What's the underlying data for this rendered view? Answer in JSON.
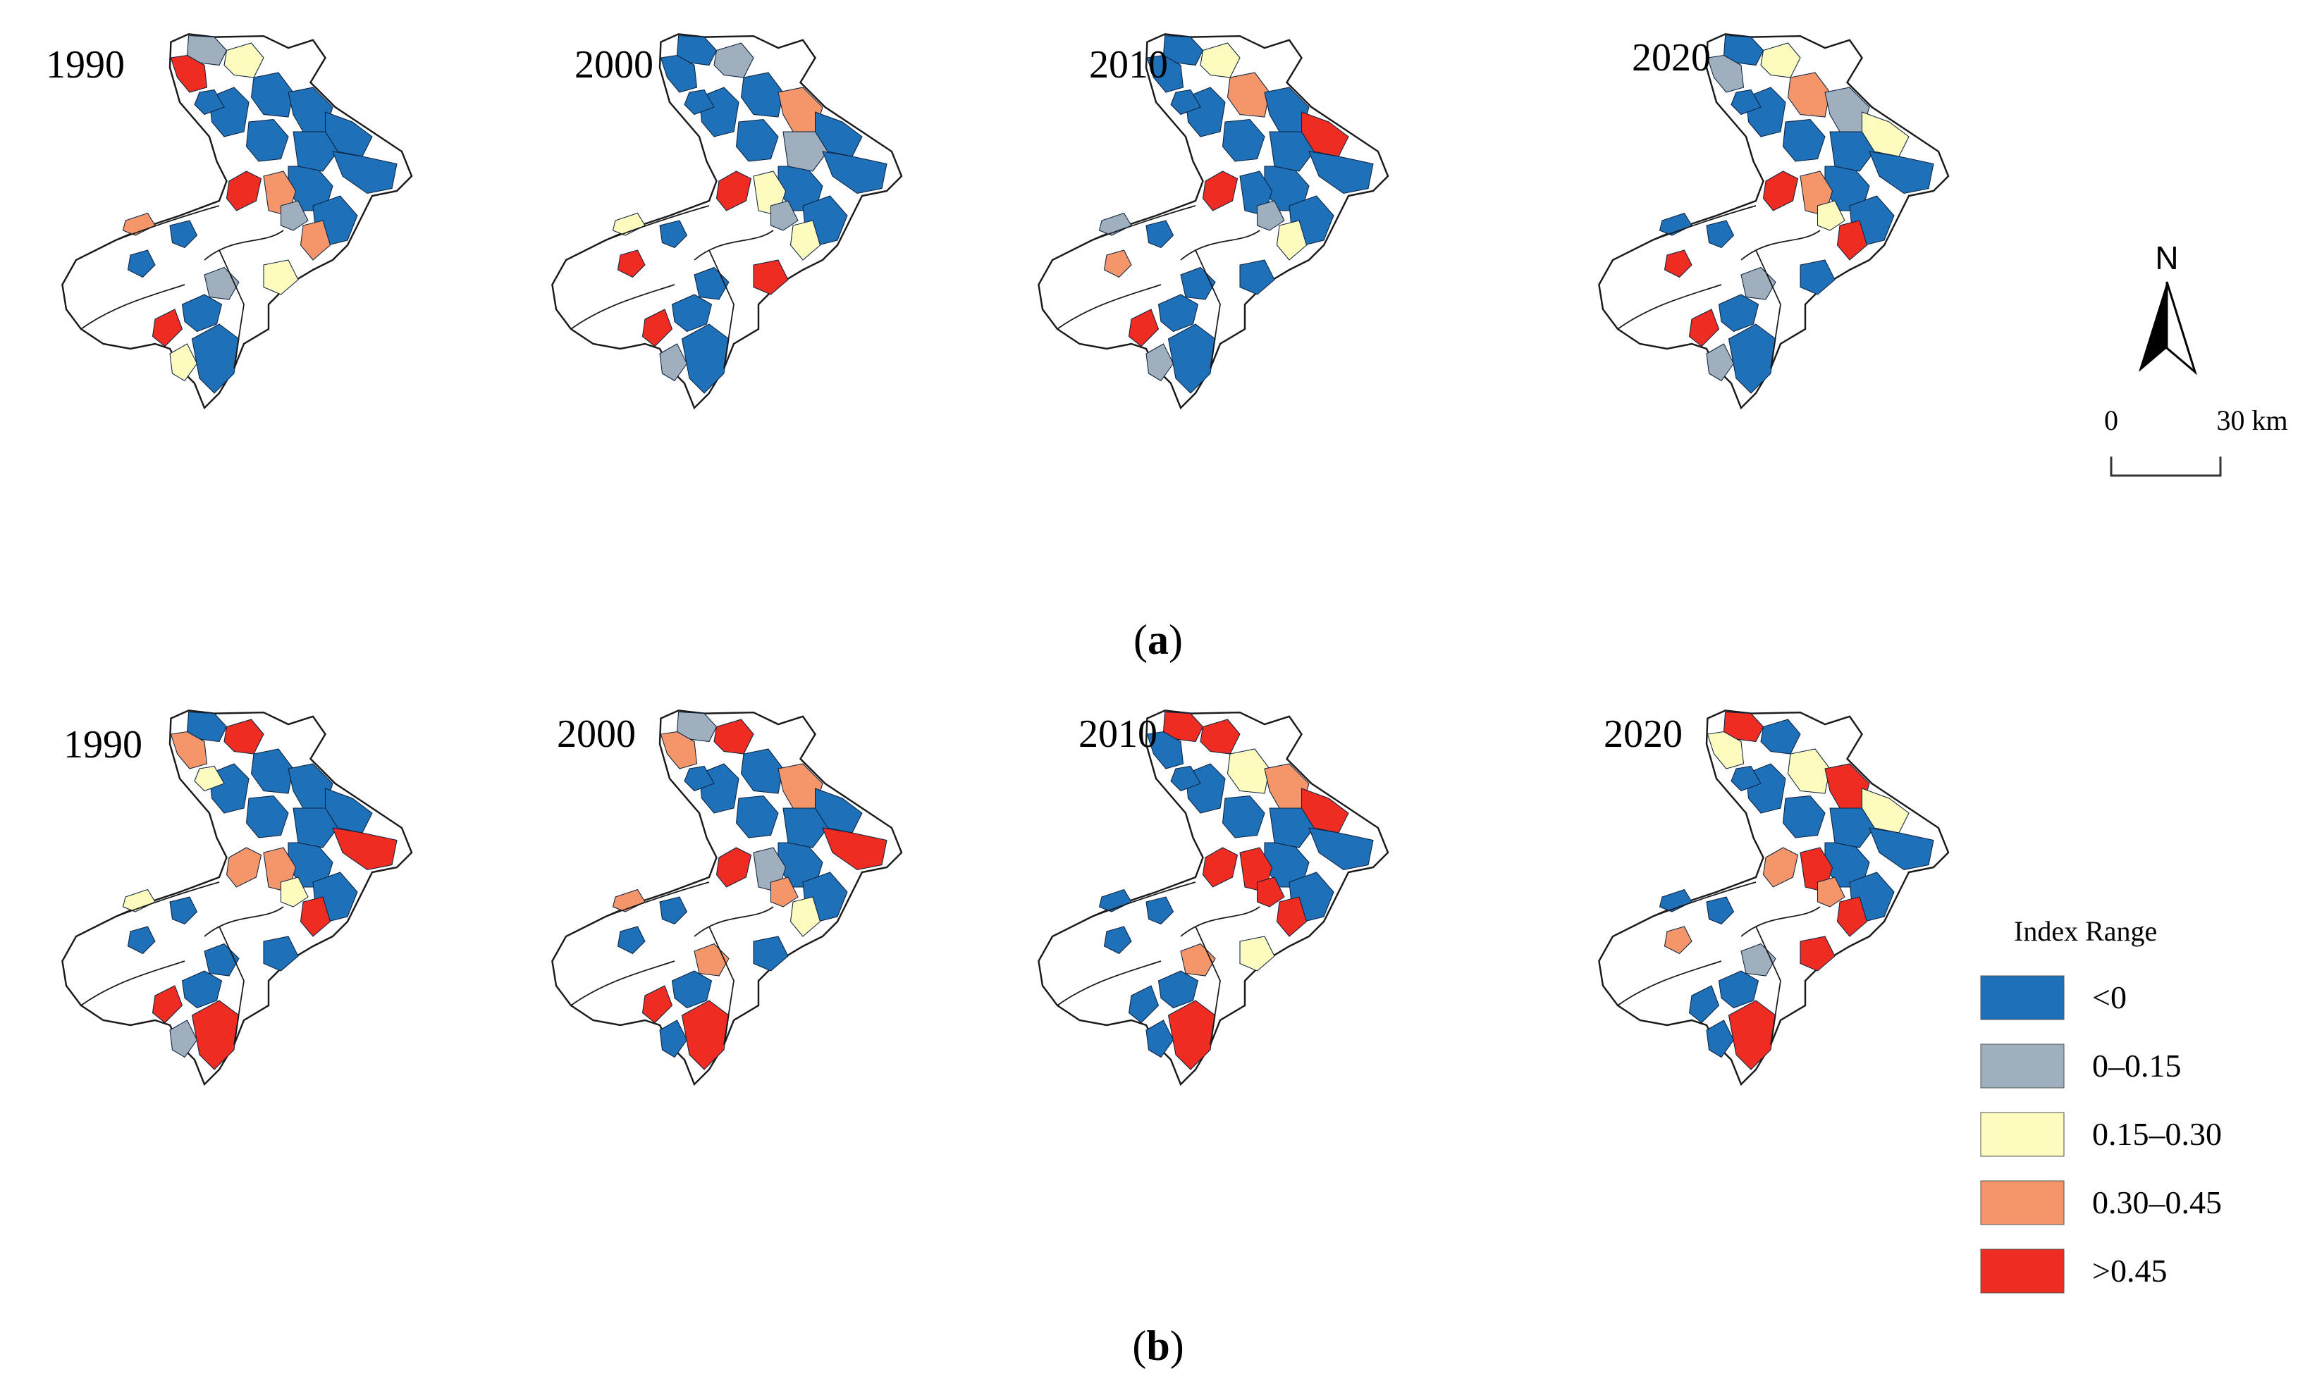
{
  "colors": {
    "lt0": "#1e70b8",
    "c0_015": "#a0afbd",
    "c015_030": "#fdfcbe",
    "c030_045": "#f5966a",
    "gt045": "#ef2c22",
    "white": "#ffffff",
    "outline": "#1a1a1a"
  },
  "panels": [
    {
      "caption_letter": "a",
      "maps": [
        {
          "year": "1990",
          "regions": {
            "n1": "c0_015",
            "n2": "gt045",
            "n3": "c015_030",
            "n4": "lt0",
            "n5": "lt0",
            "n6": "lt0",
            "c1": "gt045",
            "c2": "c030_045",
            "c3": "c0_015",
            "w1": "c030_045",
            "w2": "lt0",
            "s1": "c0_015",
            "s2": "c015_030",
            "se1": "c030_045",
            "sw1": "gt045",
            "sw2": "c015_030",
            "sw3": "lt0",
            "e1": "lt0",
            "e2": "lt0",
            "e3": "lt0"
          }
        },
        {
          "year": "2000",
          "regions": {
            "n1": "lt0",
            "n2": "lt0",
            "n3": "c0_015",
            "n4": "lt0",
            "n5": "lt0",
            "n6": "c030_045",
            "c1": "gt045",
            "c2": "c015_030",
            "c3": "c0_015",
            "w1": "c015_030",
            "w2": "gt045",
            "s1": "lt0",
            "s2": "gt045",
            "se1": "c015_030",
            "sw1": "gt045",
            "sw2": "c0_015",
            "sw3": "lt0",
            "e1": "lt0",
            "e2": "c0_015",
            "e3": "lt0"
          }
        },
        {
          "year": "2010",
          "regions": {
            "n1": "lt0",
            "n2": "lt0",
            "n3": "c015_030",
            "n4": "lt0",
            "n5": "c030_045",
            "n6": "lt0",
            "c1": "gt045",
            "c2": "lt0",
            "c3": "c0_015",
            "w1": "c0_015",
            "w2": "c030_045",
            "s1": "lt0",
            "s2": "lt0",
            "se1": "c015_030",
            "sw1": "gt045",
            "sw2": "c0_015",
            "sw3": "lt0",
            "e1": "gt045",
            "e2": "lt0",
            "e3": "lt0"
          }
        },
        {
          "year": "2020",
          "regions": {
            "n1": "lt0",
            "n2": "c0_015",
            "n3": "c015_030",
            "n4": "lt0",
            "n5": "c030_045",
            "n6": "c0_015",
            "c1": "gt045",
            "c2": "c030_045",
            "c3": "c015_030",
            "w1": "lt0",
            "w2": "gt045",
            "s1": "c0_015",
            "s2": "lt0",
            "se1": "gt045",
            "sw1": "gt045",
            "sw2": "c0_015",
            "sw3": "lt0",
            "e1": "c015_030",
            "e2": "lt0",
            "e3": "lt0"
          }
        }
      ]
    },
    {
      "caption_letter": "b",
      "maps": [
        {
          "year": "1990",
          "regions": {
            "n1": "lt0",
            "n2": "c030_045",
            "n3": "gt045",
            "n4": "c015_030",
            "n5": "lt0",
            "n6": "lt0",
            "c1": "c030_045",
            "c2": "c030_045",
            "c3": "c015_030",
            "w1": "c015_030",
            "w2": "lt0",
            "s1": "lt0",
            "s2": "lt0",
            "se1": "gt045",
            "sw1": "gt045",
            "sw2": "c0_015",
            "sw3": "gt045",
            "e1": "lt0",
            "e2": "lt0",
            "e3": "gt045"
          }
        },
        {
          "year": "2000",
          "regions": {
            "n1": "c0_015",
            "n2": "c030_045",
            "n3": "gt045",
            "n4": "lt0",
            "n5": "lt0",
            "n6": "c030_045",
            "c1": "gt045",
            "c2": "c0_015",
            "c3": "c030_045",
            "w1": "c030_045",
            "w2": "lt0",
            "s1": "c030_045",
            "s2": "lt0",
            "se1": "c015_030",
            "sw1": "gt045",
            "sw2": "lt0",
            "sw3": "gt045",
            "e1": "lt0",
            "e2": "lt0",
            "e3": "gt045"
          }
        },
        {
          "year": "2010",
          "regions": {
            "n1": "gt045",
            "n2": "lt0",
            "n3": "gt045",
            "n4": "lt0",
            "n5": "c015_030",
            "n6": "c030_045",
            "c1": "gt045",
            "c2": "gt045",
            "c3": "gt045",
            "w1": "lt0",
            "w2": "lt0",
            "s1": "c030_045",
            "s2": "c015_030",
            "se1": "gt045",
            "sw1": "lt0",
            "sw2": "lt0",
            "sw3": "gt045",
            "e1": "gt045",
            "e2": "lt0",
            "e3": "lt0"
          }
        },
        {
          "year": "2020",
          "regions": {
            "n1": "gt045",
            "n2": "c015_030",
            "n3": "lt0",
            "n4": "lt0",
            "n5": "c015_030",
            "n6": "gt045",
            "c1": "c030_045",
            "c2": "gt045",
            "c3": "c030_045",
            "w1": "lt0",
            "w2": "c030_045",
            "s1": "c0_015",
            "s2": "gt045",
            "se1": "gt045",
            "sw1": "lt0",
            "sw2": "lt0",
            "sw3": "gt045",
            "e1": "c015_030",
            "e2": "lt0",
            "e3": "lt0"
          }
        }
      ]
    }
  ],
  "legend": {
    "title": "Index Range",
    "items": [
      {
        "label": "<0",
        "color_key": "lt0"
      },
      {
        "label": "0–0.15",
        "color_key": "c0_015"
      },
      {
        "label": "0.15–0.30",
        "color_key": "c015_030"
      },
      {
        "label": "0.30–0.45",
        "color_key": "c030_045"
      },
      {
        "label": ">0.45",
        "color_key": "gt045"
      }
    ]
  },
  "north_arrow": {
    "label": "N"
  },
  "scale_bar": {
    "start_label": "0",
    "end_label": "30 km"
  }
}
